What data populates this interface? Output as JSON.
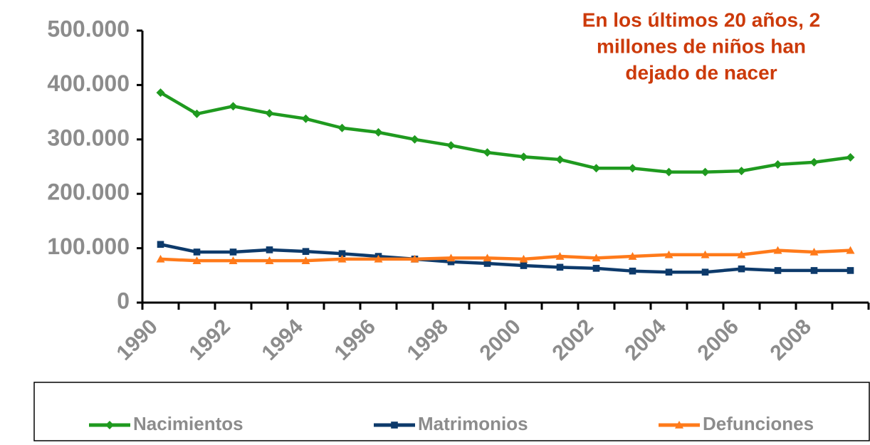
{
  "chart_data": {
    "type": "line",
    "annotation": [
      "En los últimos 20 años, 2",
      "millones de niños han",
      "dejado de nacer"
    ],
    "categories": [
      "1990",
      null,
      "1992",
      null,
      "1994",
      null,
      "1996",
      null,
      "1998",
      null,
      "2000",
      null,
      "2002",
      null,
      "2004",
      null,
      "2006",
      null,
      "2008",
      null
    ],
    "series": [
      {
        "name": "Nacimientos",
        "color": "#1f9a1f",
        "marker": "diamond",
        "values": [
          386000,
          347000,
          361000,
          348000,
          338000,
          321000,
          313000,
          300000,
          289000,
          276000,
          268000,
          263000,
          247000,
          247000,
          240000,
          240000,
          242000,
          254000,
          258000,
          267000
        ]
      },
      {
        "name": "Matrimonios",
        "color": "#0d3a6b",
        "marker": "square",
        "values": [
          107000,
          93000,
          93000,
          97000,
          94000,
          90000,
          85000,
          80000,
          75000,
          72000,
          68000,
          65000,
          63000,
          58000,
          56000,
          56000,
          62000,
          59000,
          59000,
          59000
        ]
      },
      {
        "name": "Defunciones",
        "color": "#ff7a1a",
        "marker": "triangle",
        "values": [
          80000,
          77000,
          77000,
          77000,
          77000,
          80000,
          80000,
          80000,
          82000,
          82000,
          80000,
          85000,
          82000,
          85000,
          88000,
          88000,
          88000,
          96000,
          93000,
          96000
        ]
      }
    ],
    "ylim": [
      0,
      500000
    ],
    "yticks": [
      0,
      {
        "value": 100000,
        "label": "100.000"
      },
      {
        "value": 200000,
        "label": "200.000"
      },
      {
        "value": 300000,
        "label": "300.000"
      },
      {
        "value": 400000,
        "label": "400.000"
      },
      {
        "value": 500000,
        "label": "500.000"
      }
    ],
    "grid": false,
    "legend": "bottom",
    "annotation_color": "#cc3a0a"
  }
}
